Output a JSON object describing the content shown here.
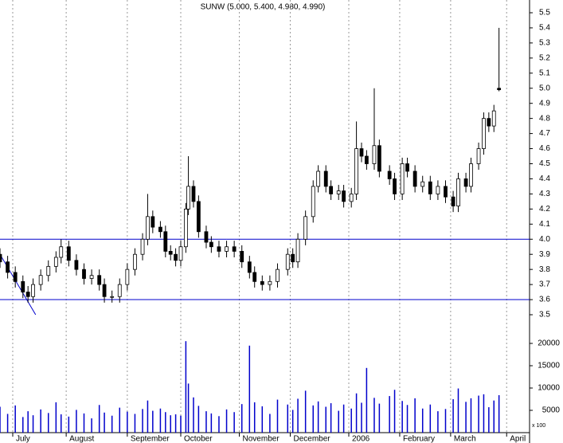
{
  "chart_data": {
    "type": "candlestick",
    "title": "SUNW (5.000, 5.400, 4.980, 4.990)",
    "x": [
      0,
      3,
      6,
      9,
      11,
      13,
      16,
      19,
      22,
      24,
      27,
      30,
      33,
      36,
      39,
      41,
      44,
      47,
      50,
      53,
      56,
      58,
      60,
      63,
      65,
      67,
      69,
      71,
      73,
      74,
      76,
      78,
      81,
      83,
      86,
      89,
      92,
      95,
      98,
      100,
      103,
      106,
      109,
      113,
      115,
      117,
      120,
      123,
      125,
      128,
      130,
      133,
      135,
      138,
      140,
      142,
      144,
      147,
      149,
      153,
      155,
      158,
      160,
      163,
      166,
      169,
      172,
      175,
      178,
      180,
      183,
      185,
      188,
      190,
      192,
      194,
      196
    ],
    "open": [
      3.9,
      3.85,
      3.78,
      3.72,
      3.65,
      3.62,
      3.7,
      3.76,
      3.82,
      3.88,
      3.95,
      3.86,
      3.8,
      3.74,
      3.76,
      3.7,
      3.62,
      3.62,
      3.7,
      3.8,
      3.9,
      4.0,
      4.15,
      4.08,
      4.05,
      3.92,
      3.9,
      3.86,
      3.95,
      4.2,
      4.35,
      4.25,
      4.05,
      3.98,
      3.95,
      3.92,
      3.95,
      3.92,
      3.85,
      3.78,
      3.72,
      3.7,
      3.72,
      3.8,
      3.9,
      3.85,
      4.0,
      4.15,
      4.35,
      4.45,
      4.35,
      4.3,
      4.32,
      4.25,
      4.3,
      4.6,
      4.55,
      4.5,
      4.62,
      4.45,
      4.4,
      4.3,
      4.5,
      4.45,
      4.35,
      4.38,
      4.3,
      4.35,
      4.28,
      4.22,
      4.4,
      4.35,
      4.5,
      4.6,
      4.8,
      4.75,
      5.0
    ],
    "high": [
      3.94,
      3.89,
      3.82,
      3.76,
      3.69,
      3.74,
      3.8,
      3.86,
      3.92,
      4.0,
      3.99,
      3.9,
      3.84,
      3.8,
      3.8,
      3.74,
      3.66,
      3.74,
      3.84,
      3.94,
      4.04,
      4.3,
      4.19,
      4.12,
      4.09,
      3.96,
      3.94,
      3.99,
      4.24,
      4.55,
      4.39,
      4.29,
      4.09,
      4.02,
      3.99,
      3.99,
      3.99,
      3.96,
      3.89,
      3.82,
      3.76,
      3.76,
      3.84,
      3.94,
      3.94,
      4.04,
      4.19,
      4.39,
      4.49,
      4.49,
      4.39,
      4.36,
      4.36,
      4.34,
      4.78,
      4.64,
      4.59,
      5.0,
      4.66,
      4.49,
      4.44,
      4.54,
      4.54,
      4.49,
      4.42,
      4.42,
      4.39,
      4.39,
      4.32,
      4.44,
      4.44,
      4.54,
      4.64,
      4.84,
      4.84,
      4.89,
      5.4
    ],
    "low": [
      3.81,
      3.74,
      3.68,
      3.61,
      3.58,
      3.58,
      3.66,
      3.72,
      3.78,
      3.84,
      3.82,
      3.76,
      3.7,
      3.7,
      3.66,
      3.58,
      3.58,
      3.58,
      3.66,
      3.76,
      3.86,
      3.96,
      4.04,
      4.01,
      3.88,
      3.86,
      3.82,
      3.82,
      3.91,
      4.16,
      4.21,
      4.01,
      3.94,
      3.91,
      3.88,
      3.88,
      3.88,
      3.81,
      3.74,
      3.68,
      3.66,
      3.66,
      3.68,
      3.76,
      3.81,
      3.81,
      3.96,
      4.11,
      4.31,
      4.31,
      4.26,
      4.26,
      4.21,
      4.21,
      4.26,
      4.51,
      4.46,
      4.46,
      4.41,
      4.36,
      4.26,
      4.26,
      4.41,
      4.31,
      4.31,
      4.26,
      4.26,
      4.24,
      4.18,
      4.18,
      4.31,
      4.31,
      4.46,
      4.56,
      4.71,
      4.71,
      4.98
    ],
    "close": [
      3.85,
      3.78,
      3.72,
      3.65,
      3.62,
      3.7,
      3.76,
      3.82,
      3.88,
      3.95,
      3.86,
      3.8,
      3.74,
      3.76,
      3.7,
      3.62,
      3.62,
      3.7,
      3.8,
      3.9,
      4.0,
      4.15,
      4.08,
      4.05,
      3.92,
      3.9,
      3.86,
      3.95,
      4.2,
      4.35,
      4.25,
      4.05,
      3.98,
      3.95,
      3.92,
      3.95,
      3.92,
      3.85,
      3.78,
      3.72,
      3.7,
      3.72,
      3.8,
      3.9,
      3.85,
      4.0,
      4.15,
      4.35,
      4.45,
      4.35,
      4.3,
      4.32,
      4.25,
      4.3,
      4.6,
      4.55,
      4.5,
      4.62,
      4.45,
      4.4,
      4.3,
      4.5,
      4.45,
      4.35,
      4.38,
      4.3,
      4.35,
      4.28,
      4.22,
      4.4,
      4.35,
      4.5,
      4.6,
      4.8,
      4.75,
      4.85,
      4.99
    ],
    "volume": [
      5800,
      4200,
      6100,
      3500,
      4800,
      3900,
      5200,
      4400,
      6800,
      4100,
      3600,
      5100,
      4300,
      3200,
      6200,
      4500,
      3800,
      5600,
      4700,
      4200,
      5300,
      7200,
      4900,
      5400,
      4600,
      3900,
      4100,
      3800,
      20500,
      11000,
      7900,
      6000,
      4800,
      4300,
      3700,
      5200,
      4600,
      6400,
      19500,
      6800,
      5900,
      4200,
      7400,
      6300,
      5100,
      7600,
      9400,
      6100,
      7000,
      5800,
      6600,
      4900,
      6300,
      5400,
      8800,
      6700,
      14500,
      7800,
      6500,
      8200,
      9600,
      7100,
      6200,
      7700,
      5400,
      6300,
      4800,
      5300,
      7500,
      9900,
      6900,
      7700,
      8300,
      8600,
      5700,
      7200,
      8400
    ],
    "up_color": "#ffffff",
    "down_color": "#000000",
    "line_color": "#0000cc",
    "xlim": [
      0,
      208
    ],
    "xticks": [
      {
        "value": 5,
        "label": "July"
      },
      {
        "value": 26,
        "label": "August"
      },
      {
        "value": 50,
        "label": "September"
      },
      {
        "value": 71,
        "label": "October"
      },
      {
        "value": 94,
        "label": "November"
      },
      {
        "value": 114,
        "label": "December"
      },
      {
        "value": 137,
        "label": "2006"
      },
      {
        "value": 157,
        "label": "February"
      },
      {
        "value": 177,
        "label": "March"
      },
      {
        "value": 199,
        "label": "April"
      }
    ],
    "ylim": [
      3.5,
      5.5
    ],
    "yticks": [
      3.5,
      3.6,
      3.7,
      3.8,
      3.9,
      {
        "value": 4.0,
        "label": "4.0"
      },
      4.1,
      4.2,
      4.3,
      4.4,
      4.5,
      4.6,
      4.7,
      4.8,
      4.9,
      {
        "value": 5.0,
        "label": "5.0"
      },
      5.1,
      5.2,
      5.3,
      5.4,
      5.5
    ],
    "y2lim": [
      0,
      20000
    ],
    "y2ticks": [
      5000,
      10000,
      15000,
      20000
    ],
    "y2_label": "x 100",
    "hlines": [
      4.0,
      3.6
    ],
    "trendline": {
      "x": [
        0,
        14
      ],
      "y": [
        3.9,
        3.5
      ]
    },
    "grid": true
  }
}
